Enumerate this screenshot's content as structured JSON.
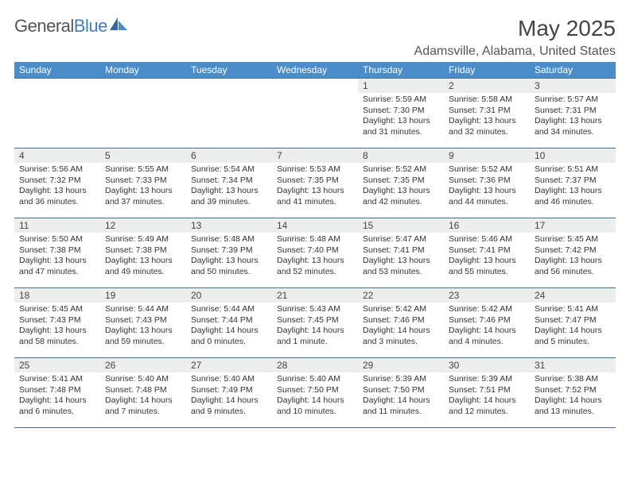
{
  "brand": {
    "name_a": "General",
    "name_b": "Blue"
  },
  "title": "May 2025",
  "location": "Adamsville, Alabama, United States",
  "colors": {
    "header_bg": "#4a8dc8",
    "header_text": "#ffffff",
    "daynum_bg": "#eceded",
    "grid_line": "#4a6b8a",
    "brand_gray": "#555555",
    "brand_blue": "#3e7fbf"
  },
  "typography": {
    "title_fontsize": 28,
    "location_fontsize": 16,
    "weekday_fontsize": 12,
    "daynum_fontsize": 12,
    "body_fontsize": 10.5
  },
  "calendar": {
    "type": "table",
    "columns": [
      "Sunday",
      "Monday",
      "Tuesday",
      "Wednesday",
      "Thursday",
      "Friday",
      "Saturday"
    ],
    "weeks": [
      [
        {
          "num": "",
          "sunrise": "",
          "sunset": "",
          "daylight": ""
        },
        {
          "num": "",
          "sunrise": "",
          "sunset": "",
          "daylight": ""
        },
        {
          "num": "",
          "sunrise": "",
          "sunset": "",
          "daylight": ""
        },
        {
          "num": "",
          "sunrise": "",
          "sunset": "",
          "daylight": ""
        },
        {
          "num": "1",
          "sunrise": "Sunrise: 5:59 AM",
          "sunset": "Sunset: 7:30 PM",
          "daylight": "Daylight: 13 hours and 31 minutes."
        },
        {
          "num": "2",
          "sunrise": "Sunrise: 5:58 AM",
          "sunset": "Sunset: 7:31 PM",
          "daylight": "Daylight: 13 hours and 32 minutes."
        },
        {
          "num": "3",
          "sunrise": "Sunrise: 5:57 AM",
          "sunset": "Sunset: 7:31 PM",
          "daylight": "Daylight: 13 hours and 34 minutes."
        }
      ],
      [
        {
          "num": "4",
          "sunrise": "Sunrise: 5:56 AM",
          "sunset": "Sunset: 7:32 PM",
          "daylight": "Daylight: 13 hours and 36 minutes."
        },
        {
          "num": "5",
          "sunrise": "Sunrise: 5:55 AM",
          "sunset": "Sunset: 7:33 PM",
          "daylight": "Daylight: 13 hours and 37 minutes."
        },
        {
          "num": "6",
          "sunrise": "Sunrise: 5:54 AM",
          "sunset": "Sunset: 7:34 PM",
          "daylight": "Daylight: 13 hours and 39 minutes."
        },
        {
          "num": "7",
          "sunrise": "Sunrise: 5:53 AM",
          "sunset": "Sunset: 7:35 PM",
          "daylight": "Daylight: 13 hours and 41 minutes."
        },
        {
          "num": "8",
          "sunrise": "Sunrise: 5:52 AM",
          "sunset": "Sunset: 7:35 PM",
          "daylight": "Daylight: 13 hours and 42 minutes."
        },
        {
          "num": "9",
          "sunrise": "Sunrise: 5:52 AM",
          "sunset": "Sunset: 7:36 PM",
          "daylight": "Daylight: 13 hours and 44 minutes."
        },
        {
          "num": "10",
          "sunrise": "Sunrise: 5:51 AM",
          "sunset": "Sunset: 7:37 PM",
          "daylight": "Daylight: 13 hours and 46 minutes."
        }
      ],
      [
        {
          "num": "11",
          "sunrise": "Sunrise: 5:50 AM",
          "sunset": "Sunset: 7:38 PM",
          "daylight": "Daylight: 13 hours and 47 minutes."
        },
        {
          "num": "12",
          "sunrise": "Sunrise: 5:49 AM",
          "sunset": "Sunset: 7:38 PM",
          "daylight": "Daylight: 13 hours and 49 minutes."
        },
        {
          "num": "13",
          "sunrise": "Sunrise: 5:48 AM",
          "sunset": "Sunset: 7:39 PM",
          "daylight": "Daylight: 13 hours and 50 minutes."
        },
        {
          "num": "14",
          "sunrise": "Sunrise: 5:48 AM",
          "sunset": "Sunset: 7:40 PM",
          "daylight": "Daylight: 13 hours and 52 minutes."
        },
        {
          "num": "15",
          "sunrise": "Sunrise: 5:47 AM",
          "sunset": "Sunset: 7:41 PM",
          "daylight": "Daylight: 13 hours and 53 minutes."
        },
        {
          "num": "16",
          "sunrise": "Sunrise: 5:46 AM",
          "sunset": "Sunset: 7:41 PM",
          "daylight": "Daylight: 13 hours and 55 minutes."
        },
        {
          "num": "17",
          "sunrise": "Sunrise: 5:45 AM",
          "sunset": "Sunset: 7:42 PM",
          "daylight": "Daylight: 13 hours and 56 minutes."
        }
      ],
      [
        {
          "num": "18",
          "sunrise": "Sunrise: 5:45 AM",
          "sunset": "Sunset: 7:43 PM",
          "daylight": "Daylight: 13 hours and 58 minutes."
        },
        {
          "num": "19",
          "sunrise": "Sunrise: 5:44 AM",
          "sunset": "Sunset: 7:43 PM",
          "daylight": "Daylight: 13 hours and 59 minutes."
        },
        {
          "num": "20",
          "sunrise": "Sunrise: 5:44 AM",
          "sunset": "Sunset: 7:44 PM",
          "daylight": "Daylight: 14 hours and 0 minutes."
        },
        {
          "num": "21",
          "sunrise": "Sunrise: 5:43 AM",
          "sunset": "Sunset: 7:45 PM",
          "daylight": "Daylight: 14 hours and 1 minute."
        },
        {
          "num": "22",
          "sunrise": "Sunrise: 5:42 AM",
          "sunset": "Sunset: 7:46 PM",
          "daylight": "Daylight: 14 hours and 3 minutes."
        },
        {
          "num": "23",
          "sunrise": "Sunrise: 5:42 AM",
          "sunset": "Sunset: 7:46 PM",
          "daylight": "Daylight: 14 hours and 4 minutes."
        },
        {
          "num": "24",
          "sunrise": "Sunrise: 5:41 AM",
          "sunset": "Sunset: 7:47 PM",
          "daylight": "Daylight: 14 hours and 5 minutes."
        }
      ],
      [
        {
          "num": "25",
          "sunrise": "Sunrise: 5:41 AM",
          "sunset": "Sunset: 7:48 PM",
          "daylight": "Daylight: 14 hours and 6 minutes."
        },
        {
          "num": "26",
          "sunrise": "Sunrise: 5:40 AM",
          "sunset": "Sunset: 7:48 PM",
          "daylight": "Daylight: 14 hours and 7 minutes."
        },
        {
          "num": "27",
          "sunrise": "Sunrise: 5:40 AM",
          "sunset": "Sunset: 7:49 PM",
          "daylight": "Daylight: 14 hours and 9 minutes."
        },
        {
          "num": "28",
          "sunrise": "Sunrise: 5:40 AM",
          "sunset": "Sunset: 7:50 PM",
          "daylight": "Daylight: 14 hours and 10 minutes."
        },
        {
          "num": "29",
          "sunrise": "Sunrise: 5:39 AM",
          "sunset": "Sunset: 7:50 PM",
          "daylight": "Daylight: 14 hours and 11 minutes."
        },
        {
          "num": "30",
          "sunrise": "Sunrise: 5:39 AM",
          "sunset": "Sunset: 7:51 PM",
          "daylight": "Daylight: 14 hours and 12 minutes."
        },
        {
          "num": "31",
          "sunrise": "Sunrise: 5:38 AM",
          "sunset": "Sunset: 7:52 PM",
          "daylight": "Daylight: 14 hours and 13 minutes."
        }
      ]
    ]
  }
}
